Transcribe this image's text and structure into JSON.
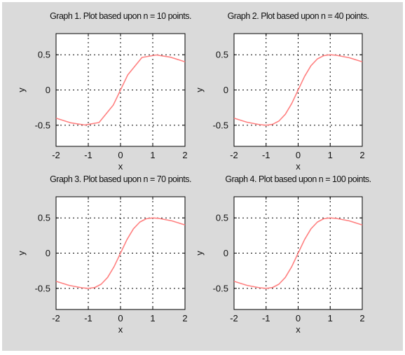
{
  "figure": {
    "background_color": "#dadada",
    "line_color": "#ff8080"
  },
  "chart_data": [
    {
      "type": "line",
      "title": "Graph 1. Plot based upon n = 10 points.",
      "xlabel": "x",
      "ylabel": "y",
      "xlim": [
        -2,
        2
      ],
      "ylim": [
        -0.8,
        0.8
      ],
      "xticks": [
        -2,
        -1,
        0,
        1,
        2
      ],
      "xtick_labels": [
        "-2",
        "-1",
        "0",
        "1",
        "2"
      ],
      "yticks": [
        -0.5,
        0,
        0.5
      ],
      "ytick_labels": [
        "-0.5",
        "0",
        "0.5"
      ],
      "grid": true,
      "series": [
        {
          "x": [
            -2,
            -1.556,
            -1.111,
            -0.667,
            -0.222,
            0.222,
            0.667,
            1.111,
            1.556,
            2
          ],
          "y": [
            -0.4,
            -0.465,
            -0.497,
            -0.462,
            -0.212,
            0.212,
            0.462,
            0.497,
            0.465,
            0.4
          ]
        }
      ]
    },
    {
      "type": "line",
      "title": "Graph 2. Plot based upon n = 40 points.",
      "xlabel": "x",
      "ylabel": "y",
      "xlim": [
        -2,
        2
      ],
      "ylim": [
        -0.8,
        0.8
      ],
      "xticks": [
        -2,
        -1,
        0,
        1,
        2
      ],
      "xtick_labels": [
        "-2",
        "-1",
        "0",
        "1",
        "2"
      ],
      "yticks": [
        -0.5,
        0,
        0.5
      ],
      "ytick_labels": [
        "-0.5",
        "0",
        "0.5"
      ],
      "grid": true,
      "series": [
        {
          "x": [
            -2,
            -1.6,
            -1.2,
            -1.0,
            -0.8,
            -0.6,
            -0.4,
            -0.2,
            0,
            0.2,
            0.4,
            0.6,
            0.8,
            1.0,
            1.2,
            1.6,
            2
          ],
          "y": [
            -0.4,
            -0.457,
            -0.492,
            -0.5,
            -0.488,
            -0.441,
            -0.345,
            -0.192,
            0,
            0.192,
            0.345,
            0.441,
            0.488,
            0.5,
            0.492,
            0.457,
            0.4
          ]
        }
      ]
    },
    {
      "type": "line",
      "title": "Graph 3. Plot based upon n = 70 points.",
      "xlabel": "x",
      "ylabel": "y",
      "xlim": [
        -2,
        2
      ],
      "ylim": [
        -0.8,
        0.8
      ],
      "xticks": [
        -2,
        -1,
        0,
        1,
        2
      ],
      "xtick_labels": [
        "-2",
        "-1",
        "0",
        "1",
        "2"
      ],
      "yticks": [
        -0.5,
        0,
        0.5
      ],
      "ytick_labels": [
        "-0.5",
        "0",
        "0.5"
      ],
      "grid": true,
      "series": [
        {
          "x": [
            -2,
            -1.6,
            -1.2,
            -1.0,
            -0.8,
            -0.6,
            -0.4,
            -0.2,
            0,
            0.2,
            0.4,
            0.6,
            0.8,
            1.0,
            1.2,
            1.6,
            2
          ],
          "y": [
            -0.4,
            -0.457,
            -0.492,
            -0.5,
            -0.488,
            -0.441,
            -0.345,
            -0.192,
            0,
            0.192,
            0.345,
            0.441,
            0.488,
            0.5,
            0.492,
            0.457,
            0.4
          ]
        }
      ]
    },
    {
      "type": "line",
      "title": "Graph 4. Plot based upon n = 100 points.",
      "xlabel": "x",
      "ylabel": "y",
      "xlim": [
        -2,
        2
      ],
      "ylim": [
        -0.8,
        0.8
      ],
      "xticks": [
        -2,
        -1,
        0,
        1,
        2
      ],
      "xtick_labels": [
        "-2",
        "-1",
        "0",
        "1",
        "2"
      ],
      "yticks": [
        -0.5,
        0,
        0.5
      ],
      "ytick_labels": [
        "-0.5",
        "0",
        "0.5"
      ],
      "grid": true,
      "series": [
        {
          "x": [
            -2,
            -1.6,
            -1.2,
            -1.0,
            -0.8,
            -0.6,
            -0.4,
            -0.2,
            0,
            0.2,
            0.4,
            0.6,
            0.8,
            1.0,
            1.2,
            1.6,
            2
          ],
          "y": [
            -0.4,
            -0.457,
            -0.492,
            -0.5,
            -0.488,
            -0.441,
            -0.345,
            -0.192,
            0,
            0.192,
            0.345,
            0.441,
            0.488,
            0.5,
            0.492,
            0.457,
            0.4
          ]
        }
      ]
    }
  ]
}
